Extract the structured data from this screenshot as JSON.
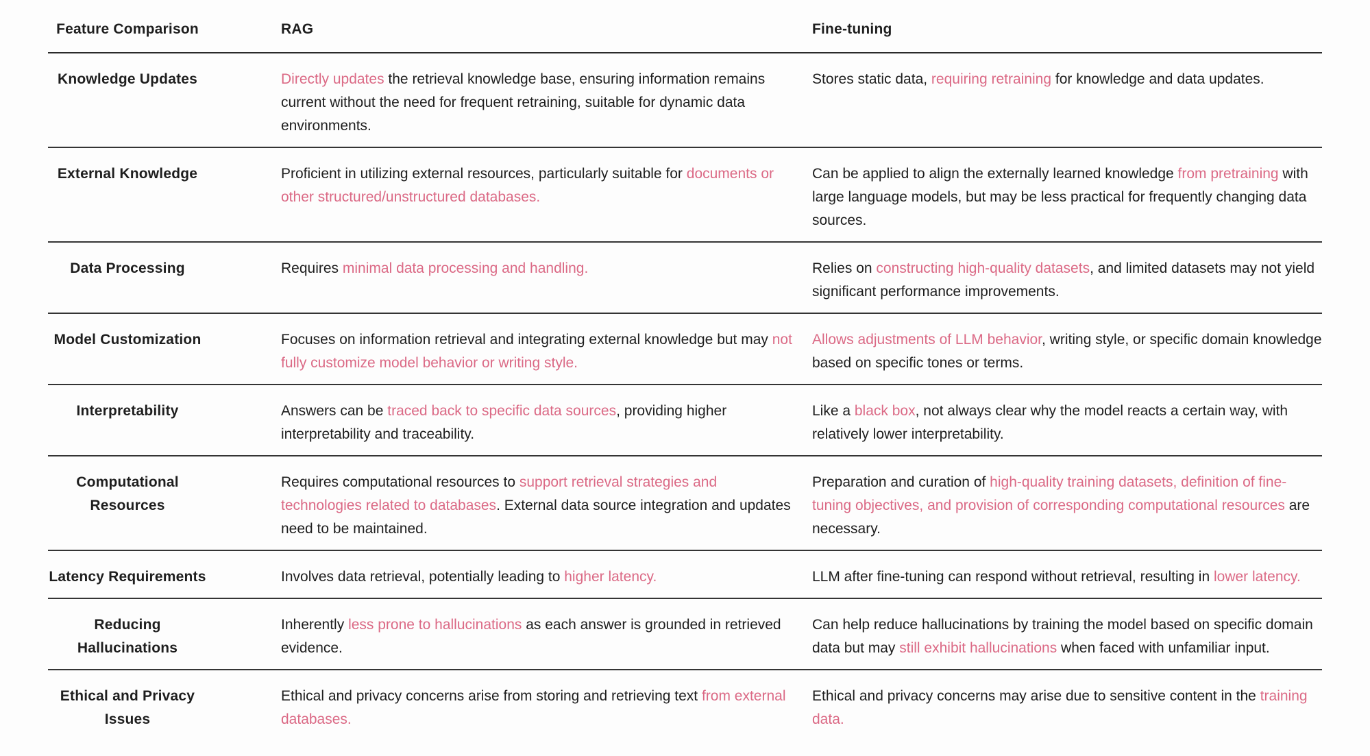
{
  "table": {
    "text_color": "#1e1e1e",
    "highlight_color": "#db6985",
    "headers": {
      "feature": "Feature Comparison",
      "rag": "RAG",
      "fine_tuning": "Fine-tuning"
    },
    "rows": [
      {
        "feature": "Knowledge Updates",
        "rag": [
          {
            "text": "Directly updates",
            "highlight": true
          },
          {
            "text": " the retrieval knowledge base, ensuring information remains current without the need for frequent retraining, suitable for dynamic data environments.",
            "highlight": false
          }
        ],
        "fine_tuning": [
          {
            "text": "Stores static data, ",
            "highlight": false
          },
          {
            "text": "requiring retraining",
            "highlight": true
          },
          {
            "text": " for knowledge and data updates.",
            "highlight": false
          }
        ]
      },
      {
        "feature": "External Knowledge",
        "rag": [
          {
            "text": "Proficient in utilizing external resources, particularly suitable for ",
            "highlight": false
          },
          {
            "text": "documents or other structured/unstructured databases.",
            "highlight": true
          }
        ],
        "fine_tuning": [
          {
            "text": "Can be applied to align the externally learned knowledge ",
            "highlight": false
          },
          {
            "text": "from pretraining",
            "highlight": true
          },
          {
            "text": " with large language models, but may be less practical for frequently changing data sources.",
            "highlight": false
          }
        ]
      },
      {
        "feature": "Data Processing",
        "rag": [
          {
            "text": "Requires ",
            "highlight": false
          },
          {
            "text": "minimal data processing and handling.",
            "highlight": true
          }
        ],
        "fine_tuning": [
          {
            "text": "Relies on ",
            "highlight": false
          },
          {
            "text": "constructing high-quality datasets",
            "highlight": true
          },
          {
            "text": ", and limited datasets may not yield significant performance improvements.",
            "highlight": false
          }
        ]
      },
      {
        "feature": "Model Customization",
        "rag": [
          {
            "text": "Focuses on information retrieval and integrating external knowledge but may ",
            "highlight": false
          },
          {
            "text": "not fully customize model behavior or writing style.",
            "highlight": true
          }
        ],
        "fine_tuning": [
          {
            "text": "Allows adjustments of LLM behavior",
            "highlight": true
          },
          {
            "text": ", writing style, or specific domain knowledge based on specific tones or terms.",
            "highlight": false
          }
        ]
      },
      {
        "feature": "Interpretability",
        "rag": [
          {
            "text": "Answers can be ",
            "highlight": false
          },
          {
            "text": "traced back to specific data sources",
            "highlight": true
          },
          {
            "text": ", providing higher interpretability and traceability.",
            "highlight": false
          }
        ],
        "fine_tuning": [
          {
            "text": "Like a ",
            "highlight": false
          },
          {
            "text": "black box",
            "highlight": true
          },
          {
            "text": ", not always clear why the model reacts a certain way, with relatively lower interpretability.",
            "highlight": false
          }
        ]
      },
      {
        "feature": "Computational Resources",
        "rag": [
          {
            "text": "Requires computational resources to ",
            "highlight": false
          },
          {
            "text": "support retrieval strategies and technologies related to databases",
            "highlight": true
          },
          {
            "text": ". External data source integration and updates need to be maintained.",
            "highlight": false
          }
        ],
        "fine_tuning": [
          {
            "text": "Preparation and curation of ",
            "highlight": false
          },
          {
            "text": "high-quality training datasets, definition of fine-tuning objectives, and provision of corresponding computational resources",
            "highlight": true
          },
          {
            "text": " are necessary.",
            "highlight": false
          }
        ]
      },
      {
        "feature": "Latency Requirements",
        "rag": [
          {
            "text": "Involves data retrieval, potentially leading to ",
            "highlight": false
          },
          {
            "text": "higher latency.",
            "highlight": true
          }
        ],
        "fine_tuning": [
          {
            "text": "LLM after fine-tuning can respond without retrieval, resulting in ",
            "highlight": false
          },
          {
            "text": "lower latency.",
            "highlight": true
          }
        ]
      },
      {
        "feature": "Reducing Hallucinations",
        "rag": [
          {
            "text": "Inherently ",
            "highlight": false
          },
          {
            "text": "less prone to hallucinations",
            "highlight": true
          },
          {
            "text": " as each answer is grounded in retrieved evidence.",
            "highlight": false
          }
        ],
        "fine_tuning": [
          {
            "text": "Can help reduce hallucinations by training the model based on specific domain data but may ",
            "highlight": false
          },
          {
            "text": "still exhibit hallucinations",
            "highlight": true
          },
          {
            "text": " when faced with unfamiliar input.",
            "highlight": false
          }
        ]
      },
      {
        "feature": "Ethical and Privacy Issues",
        "rag": [
          {
            "text": "Ethical and privacy concerns arise from storing and retrieving text ",
            "highlight": false
          },
          {
            "text": "from external databases.",
            "highlight": true
          }
        ],
        "fine_tuning": [
          {
            "text": "Ethical and privacy concerns may arise due to sensitive content in the ",
            "highlight": false
          },
          {
            "text": "training data.",
            "highlight": true
          }
        ]
      }
    ]
  }
}
